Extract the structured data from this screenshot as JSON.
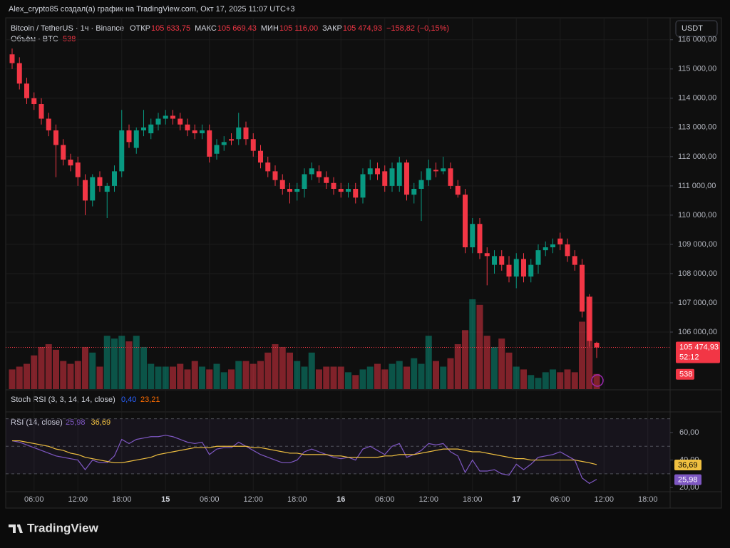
{
  "header": {
    "attribution": "Alex_crypto85 создал(а) график на TradingView.com, Окт 17, 2025 11:07 UTC+3"
  },
  "footer": {
    "logo": "TradingView"
  },
  "chart_data": {
    "type": "candlestick",
    "symbol": "Bitcoin / TetherUS · 1ч · Binance",
    "ohlc_legend": [
      {
        "key": "ОТКР",
        "value": "105 633,75"
      },
      {
        "key": "МАКС",
        "value": "105 669,43"
      },
      {
        "key": "МИН",
        "value": "105 116,00"
      },
      {
        "key": "ЗАКР",
        "value": "105 474,93"
      }
    ],
    "change": "−158,82 (−0,15%)",
    "currency": "USDT",
    "colors": {
      "up": "#089981",
      "down": "#f23645"
    },
    "grid": true,
    "categories": [
      null,
      null,
      null,
      "06:00",
      null,
      null,
      null,
      null,
      null,
      "12:00",
      null,
      null,
      null,
      null,
      null,
      "18:00",
      null,
      null,
      null,
      null,
      null,
      "15",
      null,
      null,
      null,
      null,
      null,
      "06:00",
      null,
      null,
      null,
      null,
      null,
      "12:00",
      null,
      null,
      null,
      null,
      null,
      "18:00",
      null,
      null,
      null,
      null,
      null,
      "16",
      null,
      null,
      null,
      null,
      null,
      "06:00",
      null,
      null,
      null,
      null,
      null,
      "12:00",
      null,
      null,
      null,
      null,
      null,
      "18:00",
      null,
      null,
      null,
      null,
      null,
      "17",
      null,
      null,
      null,
      null,
      null,
      "06:00",
      null,
      null,
      null,
      null,
      null,
      "12:00",
      null,
      null,
      null,
      null,
      null,
      "18:00"
    ],
    "open": [
      115500,
      115200,
      114500,
      114000,
      113800,
      113300,
      112900,
      112400,
      111900,
      111800,
      111200,
      110500,
      111300,
      110800,
      111000,
      111500,
      112900,
      112300,
      112900,
      112800,
      113100,
      113300,
      113400,
      113300,
      113100,
      112900,
      112800,
      112900,
      112100,
      112400,
      112600,
      112600,
      113000,
      112600,
      112200,
      111800,
      111500,
      111200,
      110900,
      110800,
      110900,
      111400,
      111500,
      111300,
      111100,
      110900,
      110800,
      110900,
      110600,
      111400,
      111600,
      111500,
      111000,
      111000,
      111800,
      110700,
      110900,
      111200,
      111550,
      111500,
      111600,
      111000,
      110700,
      108900,
      109700,
      108700,
      108300,
      108600,
      108300,
      107900,
      108500,
      107900,
      108300,
      108800,
      108900,
      109200,
      109000,
      108600,
      108300,
      107200,
      105633.75,
      null,
      null,
      null,
      null,
      null,
      null,
      null
    ],
    "high": [
      115700,
      115400,
      114700,
      114200,
      114000,
      113500,
      113100,
      112600,
      112100,
      112000,
      111400,
      111400,
      111500,
      111100,
      111700,
      113600,
      113100,
      113000,
      113600,
      113300,
      113500,
      113600,
      113600,
      113500,
      113300,
      113100,
      113100,
      113100,
      112600,
      112700,
      112800,
      113500,
      113200,
      112800,
      112400,
      112000,
      111700,
      111400,
      111100,
      111100,
      111600,
      111800,
      111700,
      111500,
      111300,
      111100,
      111100,
      111100,
      111600,
      111900,
      111800,
      111700,
      111800,
      112000,
      111900,
      111100,
      111500,
      111900,
      111800,
      112000,
      111800,
      111200,
      110900,
      109900,
      109900,
      108900,
      108800,
      108800,
      108600,
      108700,
      108700,
      108500,
      109000,
      109100,
      109200,
      109400,
      109200,
      108800,
      108500,
      107300,
      105669.43,
      null,
      null,
      null,
      null,
      null,
      null,
      null
    ],
    "low": [
      115000,
      114300,
      113800,
      113600,
      113100,
      112700,
      111300,
      111700,
      111500,
      111000,
      110000,
      110300,
      110800,
      109900,
      110800,
      111300,
      112300,
      112100,
      112700,
      112600,
      112900,
      113100,
      113100,
      112900,
      112700,
      112600,
      112600,
      111800,
      111900,
      112200,
      112400,
      112400,
      112400,
      112000,
      111600,
      111300,
      111000,
      110700,
      110400,
      110500,
      110600,
      111200,
      111100,
      110900,
      110700,
      110600,
      110600,
      110400,
      110400,
      111200,
      111200,
      110800,
      110800,
      110800,
      110500,
      110400,
      109800,
      111000,
      111300,
      111400,
      110900,
      110600,
      108700,
      108700,
      108500,
      107600,
      108000,
      108100,
      107700,
      107500,
      107700,
      107700,
      108000,
      108600,
      108700,
      108800,
      108400,
      108100,
      106500,
      105500,
      105116,
      null,
      null,
      null,
      null,
      null,
      null,
      null
    ],
    "close": [
      115200,
      114500,
      114000,
      113800,
      113300,
      112900,
      112400,
      111900,
      111700,
      111300,
      110500,
      111300,
      111000,
      111000,
      111500,
      112900,
      112500,
      112900,
      113000,
      113100,
      113300,
      113400,
      113300,
      113100,
      112900,
      112800,
      112900,
      112000,
      112400,
      112500,
      112550,
      113000,
      112600,
      112200,
      111800,
      111500,
      111200,
      110900,
      110800,
      110900,
      111400,
      111600,
      111300,
      111100,
      110900,
      110800,
      110900,
      110600,
      111400,
      111600,
      111400,
      111000,
      111600,
      111800,
      110700,
      110900,
      111200,
      111600,
      111500,
      111600,
      111000,
      110700,
      108900,
      109700,
      108700,
      108600,
      108600,
      108300,
      107900,
      108500,
      107900,
      108300,
      108800,
      108900,
      109000,
      109000,
      108600,
      108300,
      106700,
      105700,
      105474.93,
      null,
      null,
      null,
      null,
      null,
      null,
      null
    ],
    "close_label": "105 474,93",
    "countdown": "52:12",
    "ylim": [
      104050,
      116750
    ],
    "yticks": [
      {
        "value": 106000,
        "label": "106 000,00"
      },
      {
        "value": 107000,
        "label": "107 000,00"
      },
      {
        "value": 108000,
        "label": "108 000,00"
      },
      {
        "value": 109000,
        "label": "109 000,00"
      },
      {
        "value": 110000,
        "label": "110 000,00"
      },
      {
        "value": 111000,
        "label": "111 000,00"
      },
      {
        "value": 112000,
        "label": "112 000,00"
      },
      {
        "value": 113000,
        "label": "113 000,00"
      },
      {
        "value": 114000,
        "label": "114 000,00"
      },
      {
        "value": 115000,
        "label": "115 000,00"
      },
      {
        "value": 116000,
        "label": "116 000,00"
      }
    ],
    "volume": {
      "title": "Объём · BTC",
      "values": [
        700,
        800,
        900,
        1200,
        1500,
        1600,
        1400,
        1000,
        900,
        1000,
        1500,
        1300,
        800,
        1900,
        1800,
        1900,
        1700,
        1900,
        1500,
        900,
        800,
        800,
        800,
        900,
        700,
        1000,
        800,
        700,
        900,
        600,
        700,
        1000,
        1000,
        900,
        1000,
        1300,
        1600,
        1500,
        1300,
        1000,
        800,
        1300,
        700,
        800,
        800,
        800,
        600,
        500,
        700,
        800,
        900,
        700,
        900,
        1000,
        800,
        1100,
        900,
        1900,
        1000,
        800,
        1100,
        1600,
        2100,
        3200,
        3000,
        1900,
        1500,
        1800,
        1300,
        800,
        700,
        500,
        400,
        600,
        700,
        600,
        700,
        600,
        2400,
        3300,
        538,
        null,
        null,
        null,
        null,
        null,
        null,
        null
      ]
    }
  },
  "stoch_rsi": {
    "title": "Stoch RSI (3, 3, 14, 14, close)",
    "k": {
      "value": 0.4,
      "label": "0,40",
      "color": "#2962ff"
    },
    "d": {
      "value": 23.21,
      "label": "23,21",
      "color": "#ff6d00"
    }
  },
  "rsi": {
    "type": "line",
    "title": "RSI (14, close)",
    "ylim": [
      17,
      75
    ],
    "band": [
      30,
      70
    ],
    "midline": 50,
    "yticks": [
      {
        "value": 20,
        "label": "20,00"
      },
      {
        "value": 40,
        "label": "40,00"
      },
      {
        "value": 60,
        "label": "60,00"
      }
    ],
    "series": [
      {
        "color": "#7e57c2",
        "last_label": "25,98",
        "values": [
          54,
          53,
          51,
          49,
          47,
          45,
          43,
          42,
          41,
          40,
          33,
          40,
          38,
          38,
          43,
          55,
          52,
          55,
          56,
          57,
          57,
          58,
          57,
          55,
          53,
          52,
          53,
          44,
          48,
          49,
          49,
          53,
          50,
          47,
          44,
          42,
          40,
          38,
          38,
          40,
          46,
          48,
          46,
          44,
          42,
          41,
          42,
          40,
          48,
          50,
          47,
          44,
          50,
          52,
          42,
          44,
          47,
          52,
          51,
          52,
          46,
          43,
          31,
          40,
          32,
          32,
          33,
          30,
          29,
          37,
          33,
          37,
          42,
          43,
          44,
          46,
          43,
          40,
          27,
          23,
          25.98,
          null,
          null,
          null,
          null,
          null,
          null,
          null
        ]
      },
      {
        "color": "#f0c040",
        "last_label": "36,69",
        "values": [
          54,
          54,
          53,
          52,
          51,
          50,
          48,
          47,
          45,
          44,
          42,
          41,
          40,
          39,
          38,
          38,
          39,
          40,
          41,
          42,
          44,
          45,
          46,
          47,
          48,
          49,
          49,
          49,
          50,
          50,
          50,
          50,
          50,
          49,
          49,
          48,
          47,
          46,
          45,
          45,
          44,
          44,
          44,
          44,
          43,
          43,
          42,
          42,
          42,
          42,
          42,
          43,
          43,
          44,
          44,
          44,
          45,
          46,
          47,
          48,
          48,
          48,
          47,
          46,
          46,
          45,
          44,
          43,
          42,
          41,
          41,
          40,
          40,
          40,
          40,
          40,
          40,
          40,
          39,
          38,
          36.69,
          null,
          null,
          null,
          null,
          null,
          null,
          null
        ]
      }
    ]
  }
}
